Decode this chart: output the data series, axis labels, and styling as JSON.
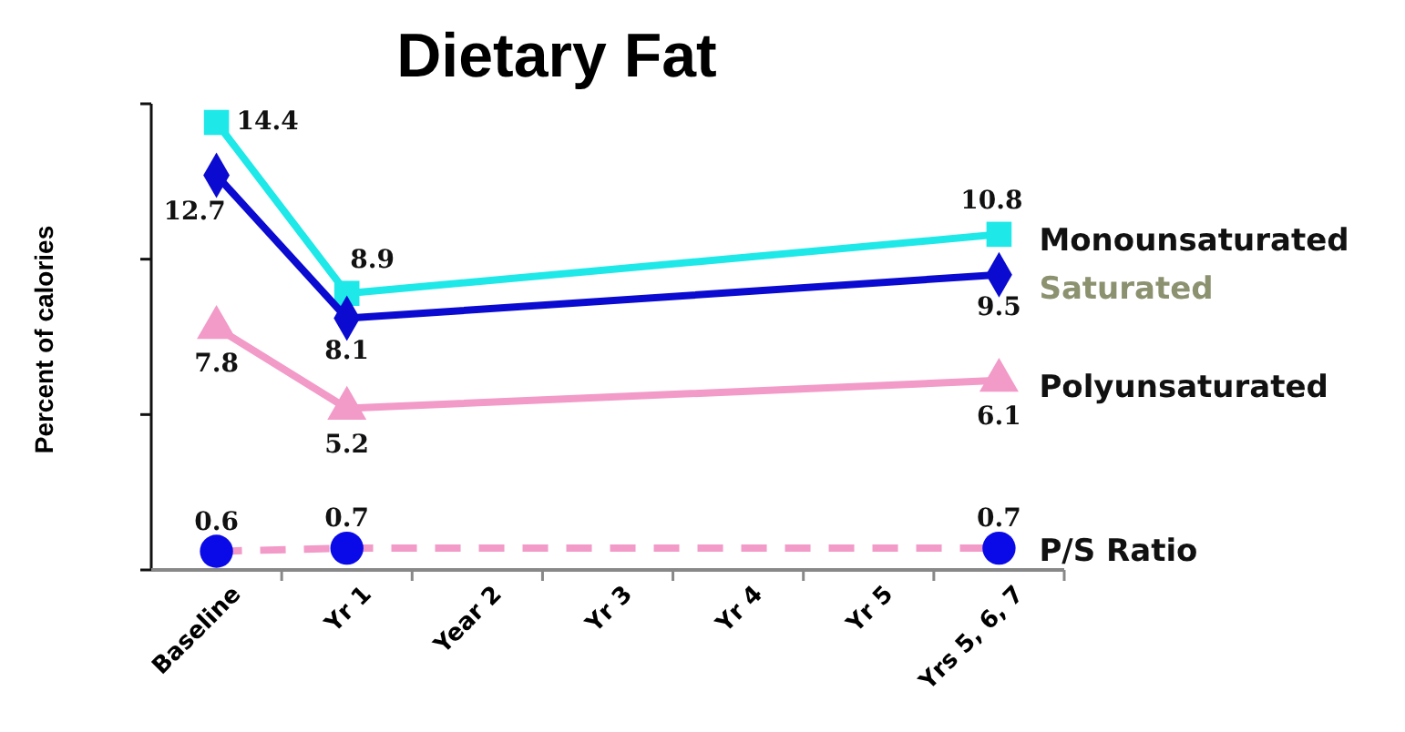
{
  "chart_data": {
    "type": "line",
    "title": "Dietary Fat",
    "ylabel": "Percent of calories",
    "categories": [
      "Baseline",
      "Yr 1",
      "Year 2",
      "Yr 3",
      "Yr 4",
      "Yr 5",
      "Yrs 5, 6, 7"
    ],
    "ylim": [
      0,
      15
    ],
    "yticks": [
      {
        "value": 0,
        "label": null
      },
      {
        "value": 5,
        "label": null
      },
      {
        "value": 10,
        "label": null
      },
      {
        "value": 15,
        "label": null
      }
    ],
    "series": [
      {
        "name": "Monounsaturated",
        "color": "#1ee8e8",
        "marker": "square",
        "values": [
          14.4,
          8.9,
          null,
          null,
          null,
          null,
          10.8
        ]
      },
      {
        "name": "Saturated",
        "color": "#0a0ad0",
        "marker": "diamond",
        "values": [
          12.7,
          8.1,
          null,
          null,
          null,
          null,
          9.5
        ]
      },
      {
        "name": "Polyunsaturated",
        "color": "#f29ac8",
        "marker": "triangle",
        "values": [
          7.8,
          5.2,
          null,
          null,
          null,
          null,
          6.1
        ]
      },
      {
        "name": "P/S Ratio",
        "color": "#f29ac8",
        "colors": [
          "#0a0ae8",
          "#0a0ae8",
          null,
          null,
          null,
          null,
          "#0a0ae8"
        ],
        "marker": "circle",
        "line_style": "dashed",
        "values": [
          0.6,
          0.7,
          null,
          null,
          null,
          null,
          0.7
        ]
      }
    ],
    "data_labels": true,
    "legend": "right",
    "grid": false
  }
}
